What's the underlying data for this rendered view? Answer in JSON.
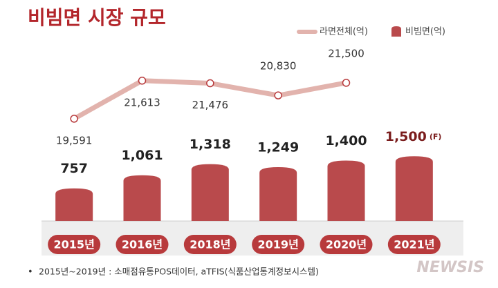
{
  "chart_data": {
    "type": "bar",
    "title": "비빔면 시장 규모",
    "categories": [
      "2015년",
      "2016년",
      "2018년",
      "2019년",
      "2020년",
      "2021년"
    ],
    "series": [
      {
        "name": "비빔면(억)",
        "type": "bar",
        "color": "#b94a4c",
        "values": [
          757,
          1061,
          1318,
          1249,
          1400,
          1500
        ],
        "value_labels": [
          "757",
          "1,061",
          "1,318",
          "1,249",
          "1,400",
          "1,500"
        ]
      },
      {
        "name": "라면전체(억)",
        "type": "line",
        "axis": "y2",
        "color": "#e2b3ad",
        "values": [
          19591,
          21613,
          21476,
          20830,
          21500,
          null
        ],
        "value_labels": [
          "19,591",
          "21,613",
          "21,476",
          "20,830",
          "21,500",
          null
        ]
      }
    ],
    "annotation": "(F)",
    "ylim": [
      0,
      4800
    ],
    "y2lim": [
      19000,
      23000
    ],
    "footnote": "2015년~2019년 : 소매점유통POS데이터, aTFIS(식품산업통계정보시스템)",
    "watermark": "NEWSIS"
  }
}
